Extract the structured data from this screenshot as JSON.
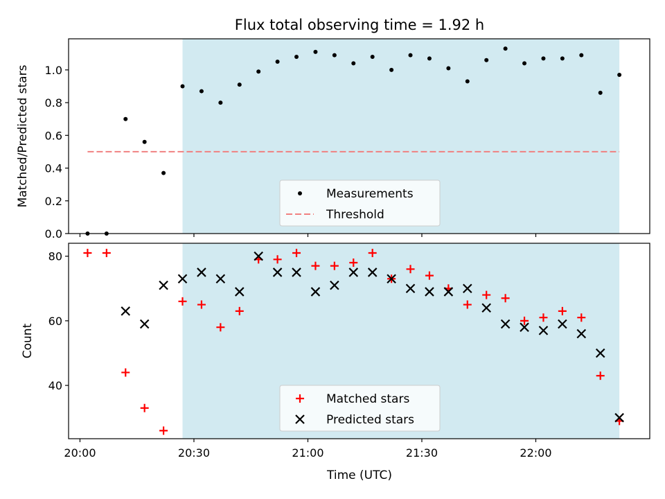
{
  "title": "Flux total observing time = 1.92 h",
  "xlabel": "Time (UTC)",
  "colors": {
    "shade": "#add8e6",
    "measurement": "#000000",
    "threshold": "#f08080",
    "matched": "#ff0000",
    "predicted": "#000000"
  },
  "chart_data": [
    {
      "type": "scatter",
      "panel": "top",
      "ylabel": "Matched/Predicted stars",
      "xlim": [
        "19:57",
        "22:30"
      ],
      "ylim": [
        0,
        1.19
      ],
      "yticks": [
        0.0,
        0.2,
        0.4,
        0.6,
        0.8,
        1.0
      ],
      "ytick_labels": [
        "0.0",
        "0.2",
        "0.4",
        "0.6",
        "0.8",
        "1.0"
      ],
      "xticks": [
        "20:00",
        "20:30",
        "21:00",
        "21:30",
        "22:00"
      ],
      "shaded_span": [
        "20:27",
        "22:22"
      ],
      "threshold": {
        "y": 0.5,
        "x_start": "20:02",
        "x_end": "22:22"
      },
      "series": [
        {
          "name": "Measurements",
          "marker": "dot",
          "x": [
            "20:02",
            "20:07",
            "20:12",
            "20:17",
            "20:22",
            "20:27",
            "20:32",
            "20:37",
            "20:42",
            "20:47",
            "20:52",
            "20:57",
            "21:02",
            "21:07",
            "21:12",
            "21:17",
            "21:22",
            "21:27",
            "21:32",
            "21:37",
            "21:42",
            "21:47",
            "21:52",
            "21:57",
            "22:02",
            "22:07",
            "22:12",
            "22:17",
            "22:22"
          ],
          "y": [
            0.0,
            0.0,
            0.7,
            0.56,
            0.37,
            0.9,
            0.87,
            0.8,
            0.91,
            0.99,
            1.05,
            1.08,
            1.11,
            1.09,
            1.04,
            1.08,
            1.0,
            1.09,
            1.07,
            1.01,
            0.93,
            1.06,
            1.13,
            1.04,
            1.07,
            1.07,
            1.09,
            0.86,
            0.97
          ]
        }
      ],
      "legend": {
        "placement": "lower-center",
        "entries": [
          "Measurements",
          "Threshold"
        ]
      }
    },
    {
      "type": "scatter",
      "panel": "bottom",
      "ylabel": "Count",
      "xlim": [
        "19:57",
        "22:30"
      ],
      "ylim": [
        23.5,
        84
      ],
      "yticks": [
        40,
        60,
        80
      ],
      "ytick_labels": [
        "40",
        "60",
        "80"
      ],
      "xticks": [
        "20:00",
        "20:30",
        "21:00",
        "21:30",
        "22:00"
      ],
      "xtick_labels": [
        "20:00",
        "20:30",
        "21:00",
        "21:30",
        "22:00"
      ],
      "shaded_span": [
        "20:27",
        "22:22"
      ],
      "series": [
        {
          "name": "Matched stars",
          "marker": "plus",
          "x": [
            "20:02",
            "20:07",
            "20:12",
            "20:17",
            "20:22",
            "20:27",
            "20:32",
            "20:37",
            "20:42",
            "20:47",
            "20:52",
            "20:57",
            "21:02",
            "21:07",
            "21:12",
            "21:17",
            "21:22",
            "21:27",
            "21:32",
            "21:37",
            "21:42",
            "21:47",
            "21:52",
            "21:57",
            "22:02",
            "22:07",
            "22:12",
            "22:17",
            "22:22"
          ],
          "y": [
            81,
            81,
            44,
            33,
            26,
            66,
            65,
            58,
            63,
            79,
            79,
            81,
            77,
            77,
            78,
            81,
            73,
            76,
            74,
            70,
            65,
            68,
            67,
            60,
            61,
            63,
            61,
            43,
            29
          ]
        },
        {
          "name": "Predicted stars",
          "marker": "x",
          "x": [
            "20:12",
            "20:17",
            "20:22",
            "20:27",
            "20:32",
            "20:37",
            "20:42",
            "20:47",
            "20:52",
            "20:57",
            "21:02",
            "21:07",
            "21:12",
            "21:17",
            "21:22",
            "21:27",
            "21:32",
            "21:37",
            "21:42",
            "21:47",
            "21:52",
            "21:57",
            "22:02",
            "22:07",
            "22:12",
            "22:17",
            "22:22"
          ],
          "y": [
            63,
            59,
            71,
            73,
            75,
            73,
            69,
            80,
            75,
            75,
            69,
            71,
            75,
            75,
            73,
            70,
            69,
            69,
            70,
            64,
            59,
            58,
            57,
            59,
            56,
            50,
            30
          ]
        }
      ],
      "legend": {
        "placement": "lower-center",
        "entries": [
          "Matched stars",
          "Predicted stars"
        ]
      }
    }
  ]
}
